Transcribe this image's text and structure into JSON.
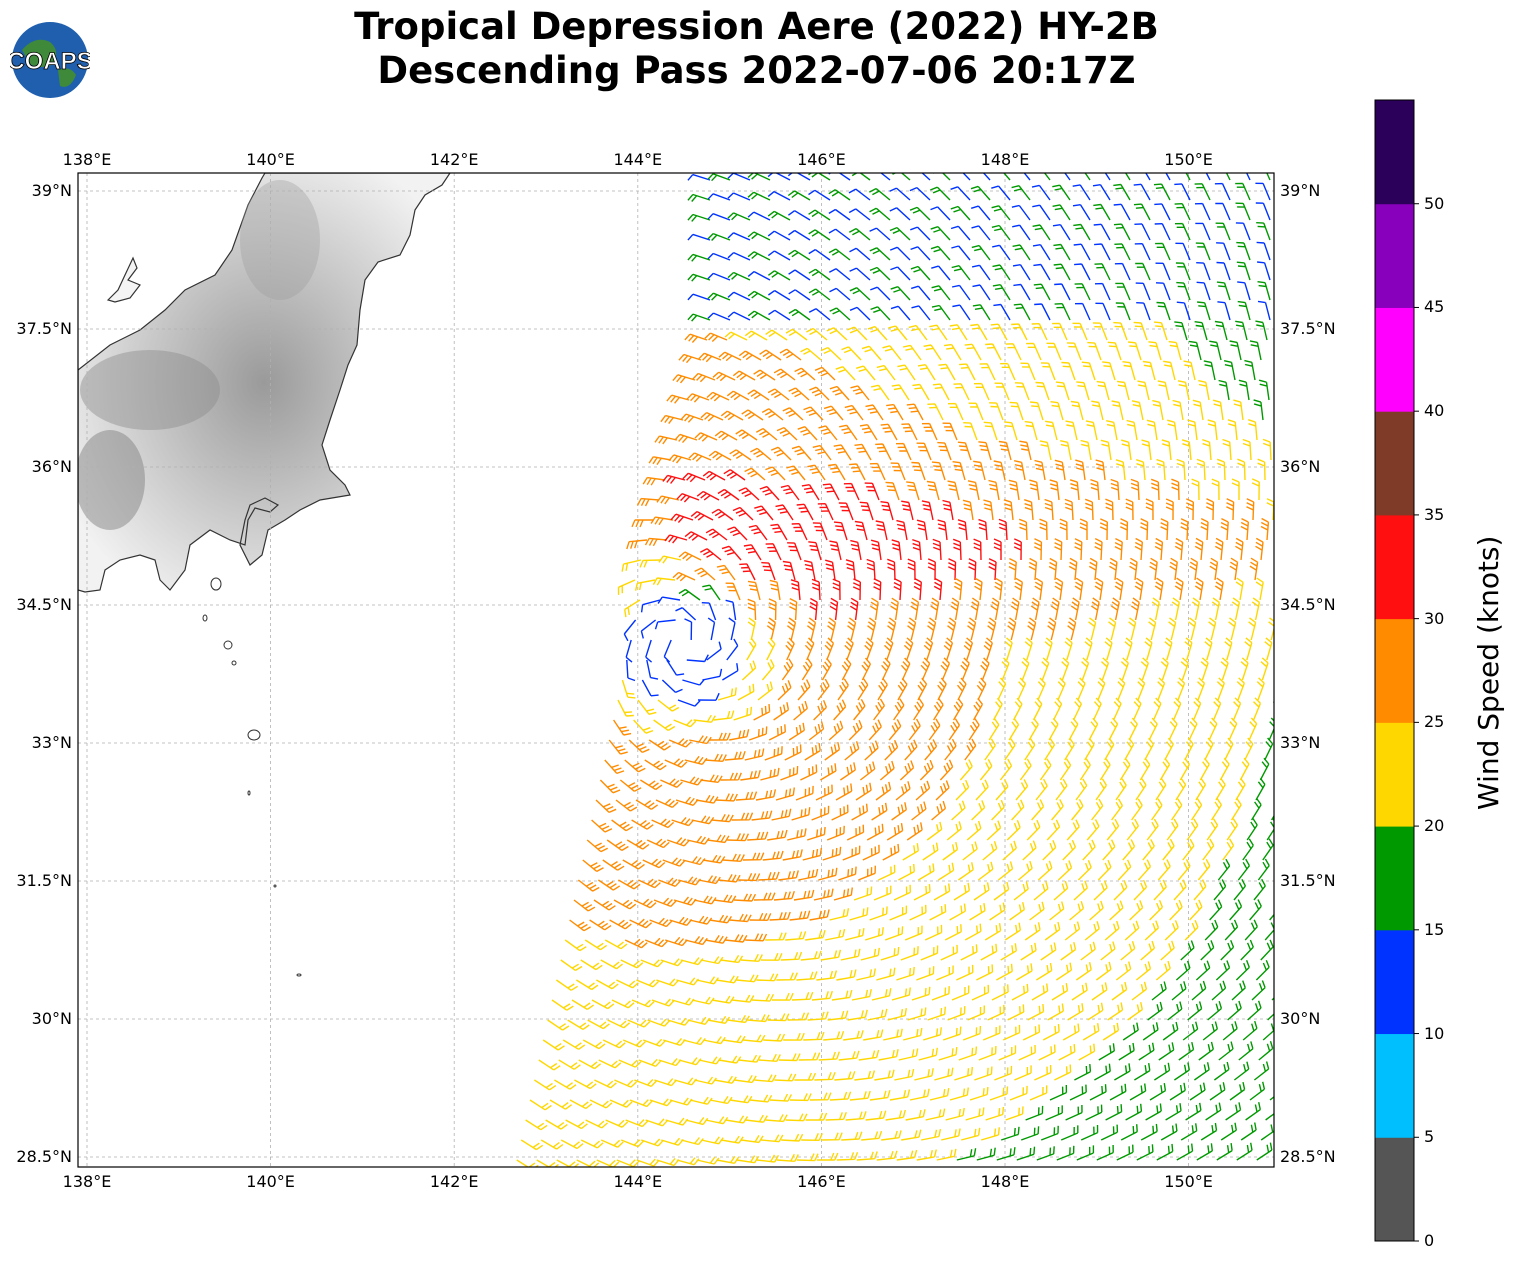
{
  "title_line1": "Tropical Depression Aere (2022) HY-2B",
  "title_line2": "Descending Pass 2022-07-06 20:17Z",
  "logo": {
    "text": "COAPS",
    "icon": "globe-icon"
  },
  "lon_labels": [
    "138°E",
    "140°E",
    "142°E",
    "144°E",
    "146°E",
    "148°E",
    "150°E"
  ],
  "lat_labels": [
    "39°N",
    "37.5°N",
    "36°N",
    "34.5°N",
    "33°N",
    "31.5°N",
    "30°N",
    "28.5°N"
  ],
  "colorbar": {
    "label": "Wind Speed (knots)",
    "ticks": [
      "0",
      "5",
      "10",
      "15",
      "20",
      "25",
      "30",
      "35",
      "40",
      "45",
      "50"
    ],
    "colors": [
      "#555555",
      "#00bfff",
      "#0033ff",
      "#009900",
      "#ffd700",
      "#ff8c00",
      "#ff0f0f",
      "#7f3a28",
      "#ff00ff",
      "#8800bb",
      "#2a005a"
    ]
  },
  "map": {
    "lon_range": [
      138,
      150.9
    ],
    "lat_range": [
      28.4,
      39.2
    ],
    "storm_center": {
      "lon": 144.5,
      "lat": 34.1
    },
    "grid": "dashed light gray"
  }
}
